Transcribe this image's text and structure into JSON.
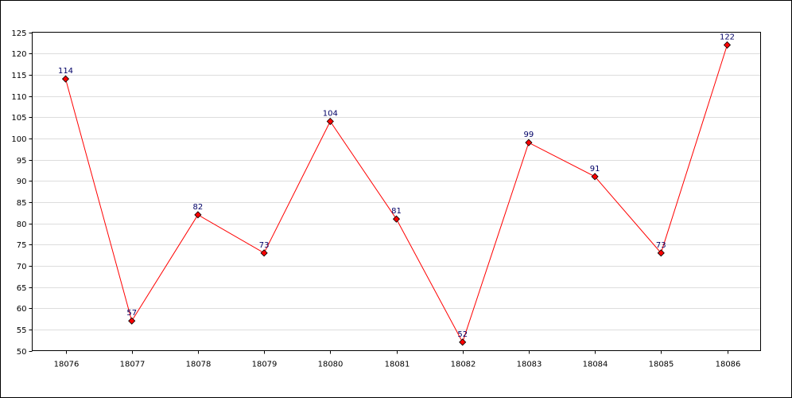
{
  "chart_data": {
    "type": "line",
    "title": "",
    "xlabel": "",
    "ylabel": "",
    "categories": [
      "18076",
      "18077",
      "18078",
      "18079",
      "18080",
      "18081",
      "18082",
      "18083",
      "18084",
      "18085",
      "18086"
    ],
    "series": [
      {
        "values": [
          114,
          57,
          82,
          73,
          104,
          81,
          52,
          99,
          91,
          73,
          122
        ],
        "color": "#ff0000",
        "marker": "diamond",
        "marker_color": "#ff0000",
        "data_labels": [
          "114",
          "57",
          "82",
          "73",
          "104",
          "81",
          "52",
          "99",
          "91",
          "73",
          "122"
        ]
      }
    ],
    "ylim": [
      50,
      125
    ],
    "yticks": [
      "50",
      "55",
      "60",
      "65",
      "70",
      "75",
      "80",
      "85",
      "90",
      "95",
      "100",
      "105",
      "110",
      "115",
      "120",
      "125"
    ],
    "grid": true,
    "grid_color": "#dddddd",
    "legend": "none"
  }
}
